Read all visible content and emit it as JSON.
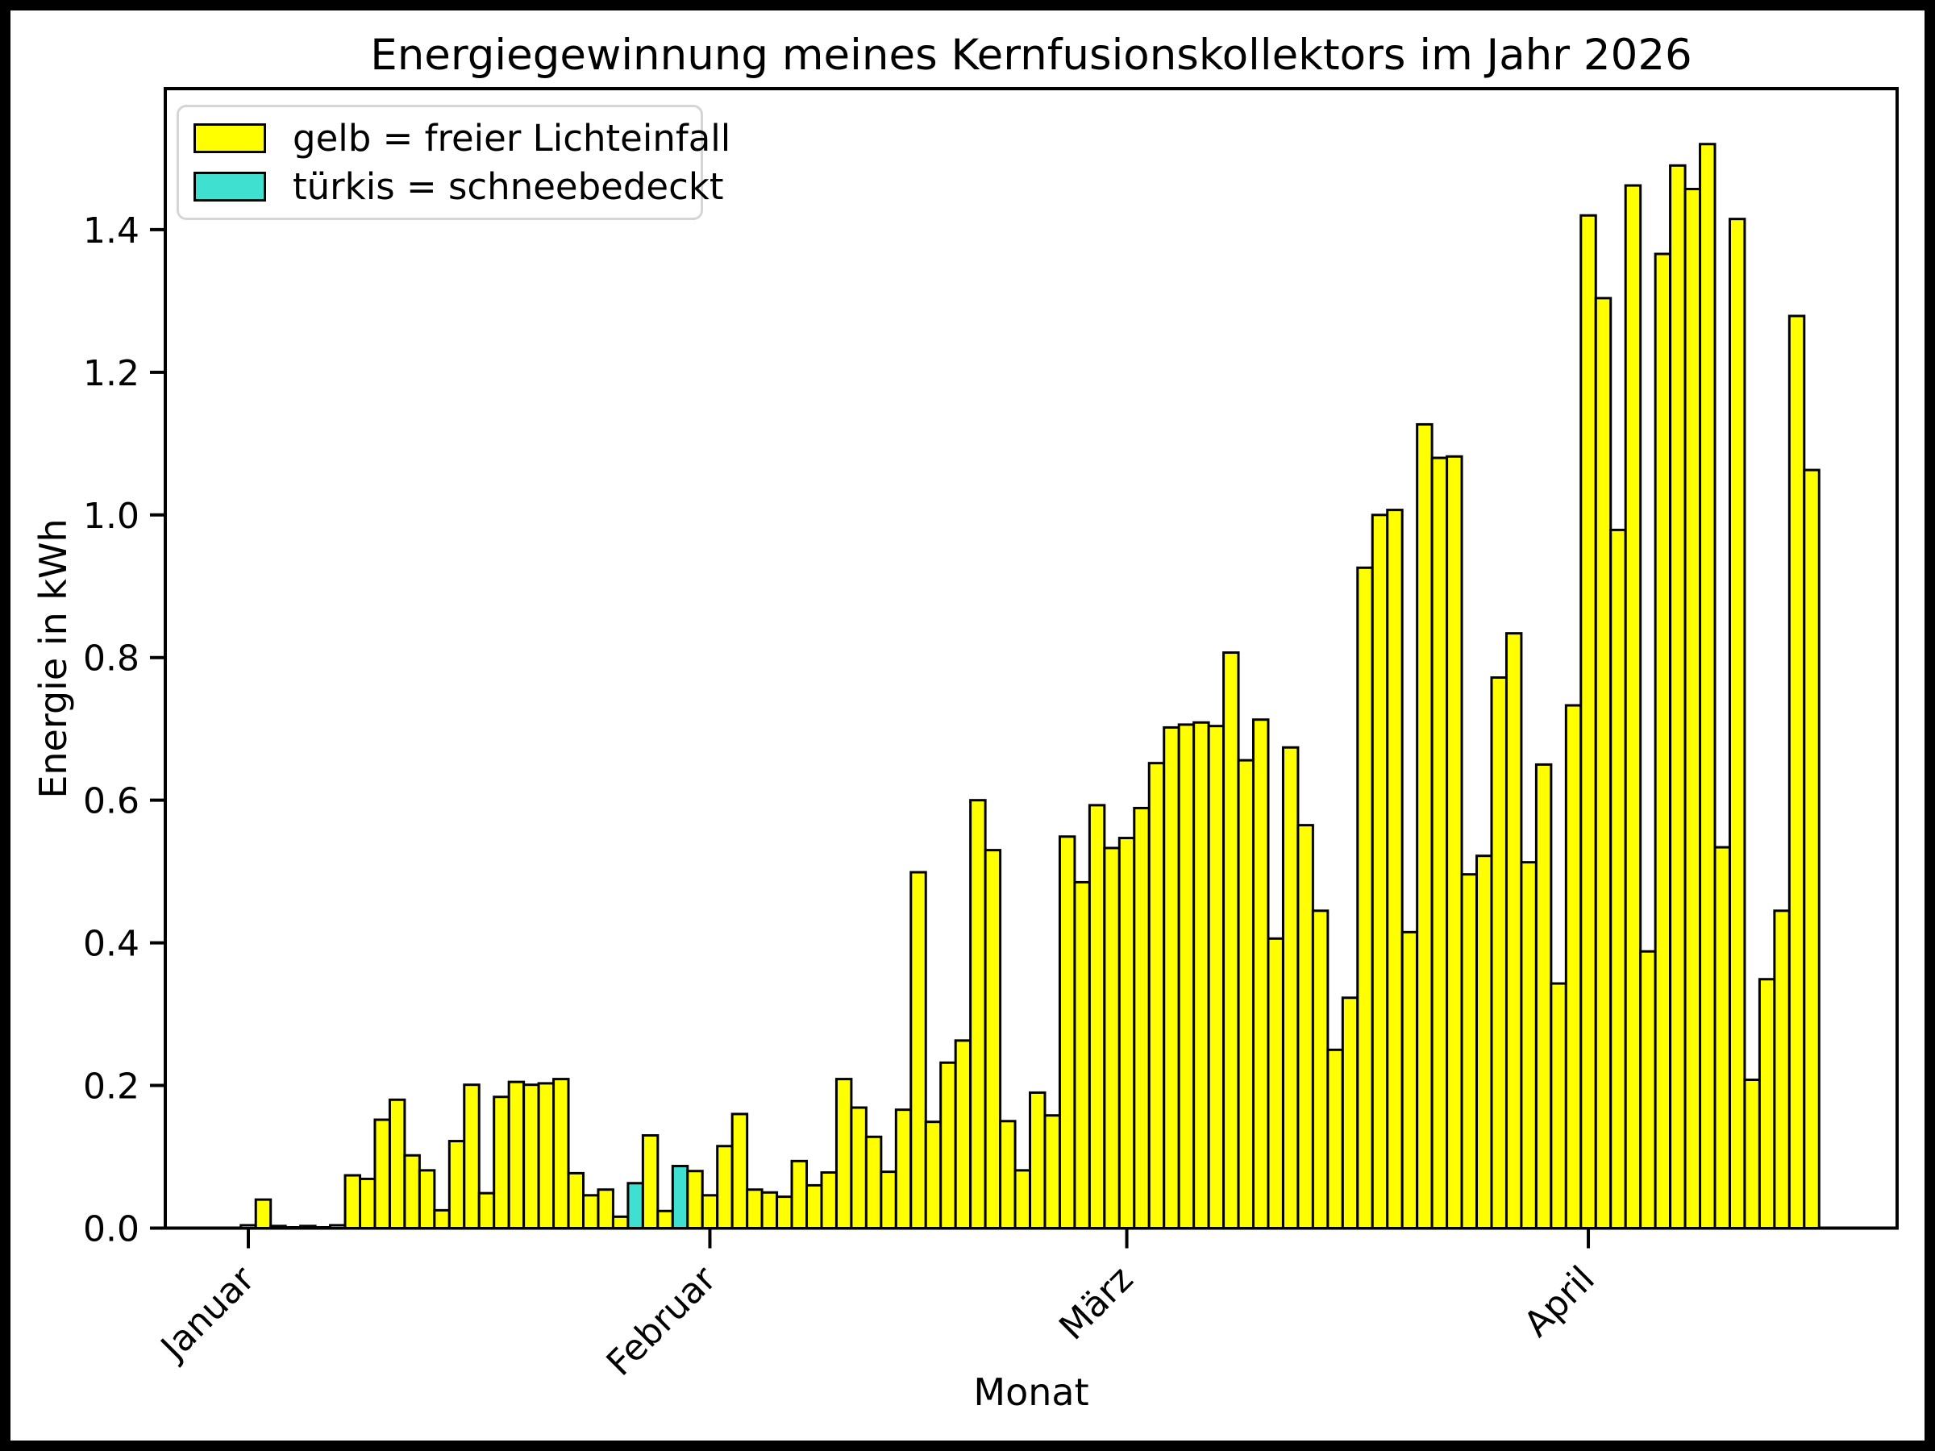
{
  "chart_data": {
    "type": "bar",
    "title": "Energiegewinnung meines Kernfusionskollektors im Jahr 2026",
    "xlabel": "Monat",
    "ylabel": "Energie in kWh",
    "ylim": [
      0,
      1.597
    ],
    "y_ticks": [
      0.0,
      0.2,
      0.4,
      0.6,
      0.8,
      1.0,
      1.2,
      1.4
    ],
    "x_tick_labels": [
      "Januar",
      "Februar",
      "März",
      "April"
    ],
    "x_tick_day_indices": [
      0,
      31,
      59,
      90
    ],
    "grid": false,
    "legend_position": "upper-left",
    "legend": [
      {
        "label": "gelb = freier Lichteinfall",
        "color": "#ffff00"
      },
      {
        "label": "türkis = schneebedeckt",
        "color": "#40e0d0"
      }
    ],
    "bar_color_default": "#ffff00",
    "bar_color_snow": "#40e0d0",
    "bar_edge_color": "#000000",
    "snow_covered_day_numbers": [
      27,
      30
    ],
    "daily_energy_kwh": [
      0.004,
      0.04,
      0.003,
      0.001,
      0.003,
      0.001,
      0.004,
      0.074,
      0.069,
      0.152,
      0.18,
      0.102,
      0.081,
      0.025,
      0.122,
      0.201,
      0.049,
      0.184,
      0.205,
      0.201,
      0.203,
      0.209,
      0.077,
      0.046,
      0.054,
      0.016,
      0.063,
      0.13,
      0.024,
      0.087,
      0.08,
      0.046,
      0.115,
      0.16,
      0.054,
      0.05,
      0.044,
      0.094,
      0.06,
      0.078,
      0.209,
      0.169,
      0.128,
      0.079,
      0.166,
      0.499,
      0.149,
      0.232,
      0.263,
      0.6,
      0.53,
      0.15,
      0.081,
      0.19,
      0.158,
      0.549,
      0.485,
      0.593,
      0.533,
      0.547,
      0.589,
      0.652,
      0.702,
      0.706,
      0.709,
      0.704,
      0.807,
      0.656,
      0.713,
      0.406,
      0.674,
      0.565,
      0.445,
      0.25,
      0.323,
      0.926,
      1.0,
      1.007,
      0.415,
      1.127,
      1.08,
      1.082,
      0.496,
      0.522,
      0.772,
      0.834,
      0.513,
      0.65,
      0.343,
      0.733,
      1.42,
      1.304,
      0.979,
      1.462,
      0.388,
      1.366,
      1.49,
      1.457,
      1.52,
      0.534,
      1.415,
      0.208,
      0.349,
      0.445,
      1.279,
      1.063
    ]
  }
}
